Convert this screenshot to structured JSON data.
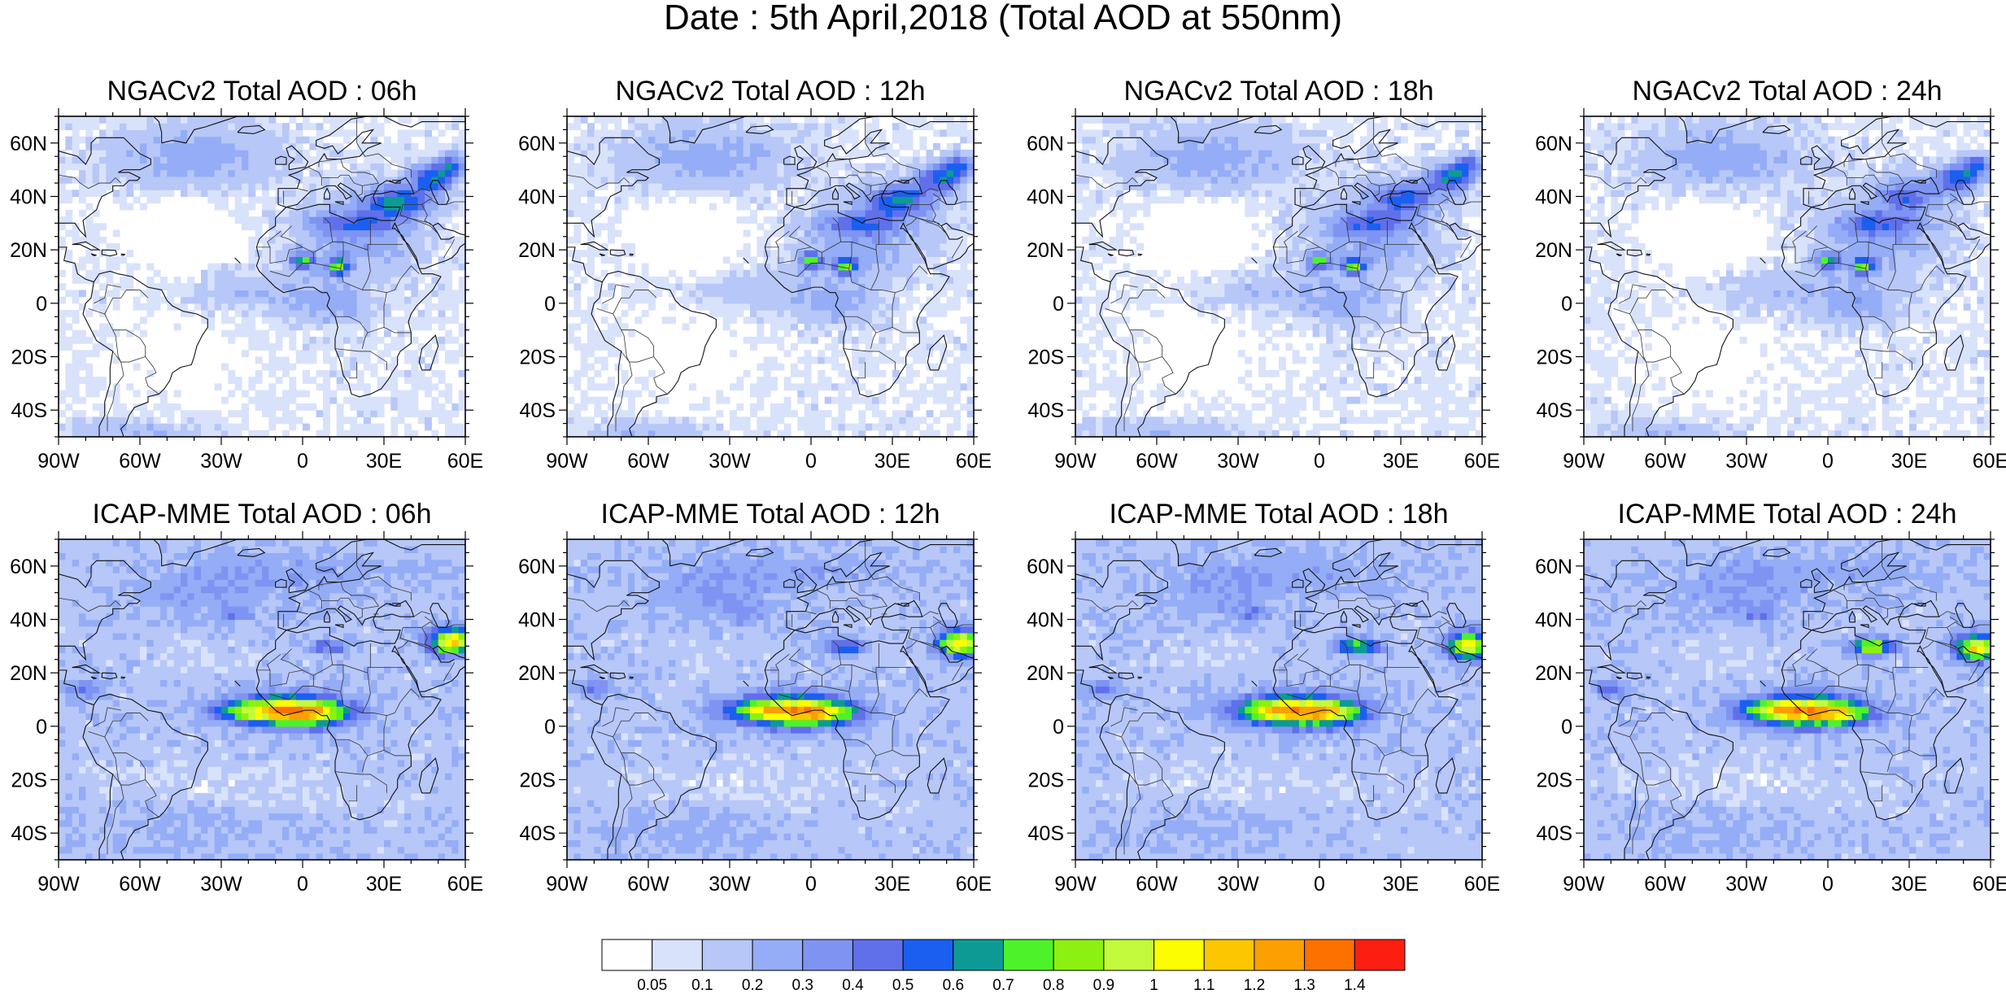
{
  "title": "Date : 5th April,2018 (Total AOD at 550nm)",
  "axes": {
    "lon_ticks": [
      "90W",
      "60W",
      "30W",
      "0",
      "30E",
      "60E"
    ],
    "lat_ticks": [
      "60N",
      "40N",
      "20N",
      "0",
      "20S",
      "40S"
    ],
    "lon_range": [
      -90,
      60
    ],
    "lat_range": [
      -50,
      70
    ]
  },
  "panels": [
    {
      "id": "ngac-06",
      "title": "NGACv2 Total AOD : 06h",
      "model": "NGACv2",
      "hour": "06h"
    },
    {
      "id": "ngac-12",
      "title": "NGACv2 Total AOD : 12h",
      "model": "NGACv2",
      "hour": "12h"
    },
    {
      "id": "ngac-18",
      "title": "NGACv2 Total AOD : 18h",
      "model": "NGACv2",
      "hour": "18h"
    },
    {
      "id": "ngac-24",
      "title": "NGACv2 Total AOD : 24h",
      "model": "NGACv2",
      "hour": "24h"
    },
    {
      "id": "icap-06",
      "title": "ICAP-MME Total AOD : 06h",
      "model": "ICAP-MME",
      "hour": "06h"
    },
    {
      "id": "icap-12",
      "title": "ICAP-MME Total AOD : 12h",
      "model": "ICAP-MME",
      "hour": "12h"
    },
    {
      "id": "icap-18",
      "title": "ICAP-MME Total AOD : 18h",
      "model": "ICAP-MME",
      "hour": "18h"
    },
    {
      "id": "icap-24",
      "title": "ICAP-MME Total AOD : 24h",
      "model": "ICAP-MME",
      "hour": "24h"
    }
  ],
  "colorbar": {
    "labels": [
      "0.05",
      "0.1",
      "0.2",
      "0.3",
      "0.4",
      "0.5",
      "0.6",
      "0.7",
      "0.8",
      "0.9",
      "1",
      "1.1",
      "1.2",
      "1.3",
      "1.4"
    ],
    "colors": [
      "#ffffff",
      "#d9e2fb",
      "#b7c7f8",
      "#94adf6",
      "#7f94f2",
      "#6070ea",
      "#1b5ff0",
      "#0d9a95",
      "#4ef22a",
      "#8cf010",
      "#c3fa3c",
      "#fcfd00",
      "#fcc600",
      "#fc9f00",
      "#fc7100",
      "#fc1e10"
    ]
  }
}
